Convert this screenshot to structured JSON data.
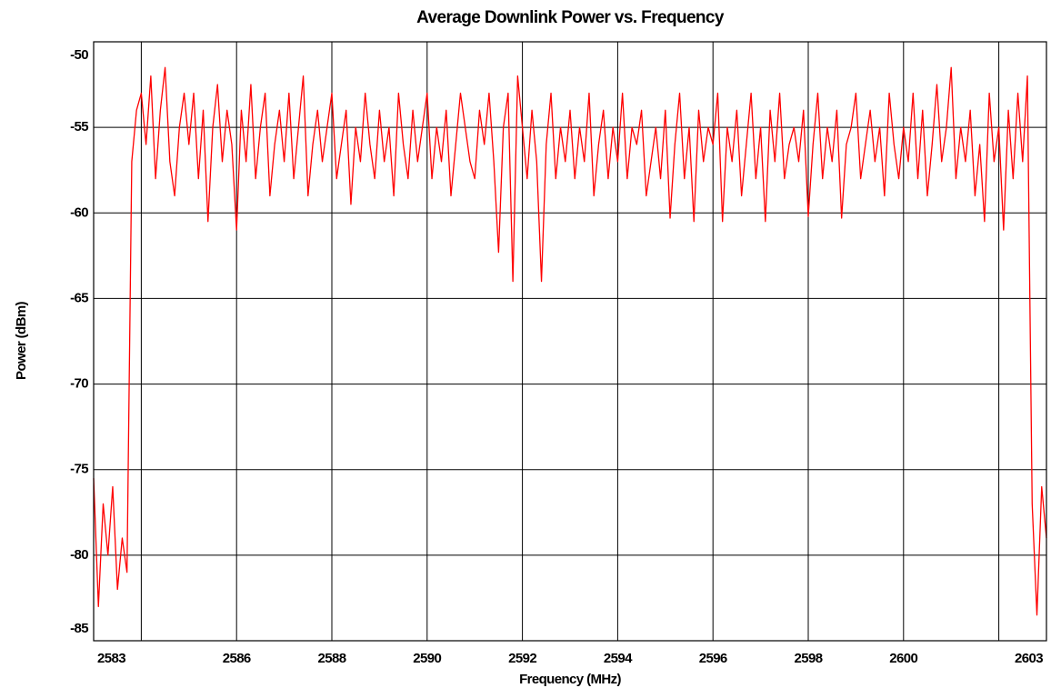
{
  "chart_data": {
    "type": "line",
    "title": "Average Downlink Power vs. Frequency",
    "xlabel": "Frequency (MHz)",
    "ylabel": "Power (dBm)",
    "x": [
      2583,
      2583.1,
      2583.2,
      2583.3,
      2583.4,
      2583.5,
      2583.6,
      2583.7,
      2583.8,
      2583.9,
      2584,
      2584.1,
      2584.2,
      2584.3,
      2584.4,
      2584.5,
      2584.6,
      2584.7,
      2584.8,
      2584.9,
      2585,
      2585.1,
      2585.2,
      2585.3,
      2585.4,
      2585.5,
      2585.6,
      2585.7,
      2585.8,
      2585.9,
      2586,
      2586.1,
      2586.2,
      2586.3,
      2586.4,
      2586.5,
      2586.6,
      2586.7,
      2586.8,
      2586.9,
      2587,
      2587.1,
      2587.2,
      2587.3,
      2587.4,
      2587.5,
      2587.6,
      2587.7,
      2587.8,
      2587.9,
      2588,
      2588.1,
      2588.2,
      2588.3,
      2588.4,
      2588.5,
      2588.6,
      2588.7,
      2588.8,
      2588.9,
      2589,
      2589.1,
      2589.2,
      2589.3,
      2589.4,
      2589.5,
      2589.6,
      2589.7,
      2589.8,
      2589.9,
      2590,
      2590.1,
      2590.2,
      2590.3,
      2590.4,
      2590.5,
      2590.6,
      2590.7,
      2590.8,
      2590.9,
      2591,
      2591.1,
      2591.2,
      2591.3,
      2591.4,
      2591.5,
      2591.6,
      2591.7,
      2591.8,
      2591.9,
      2592,
      2592.1,
      2592.2,
      2592.3,
      2592.4,
      2592.5,
      2592.6,
      2592.7,
      2592.8,
      2592.9,
      2593,
      2593.1,
      2593.2,
      2593.3,
      2593.4,
      2593.5,
      2593.6,
      2593.7,
      2593.8,
      2593.9,
      2594,
      2594.1,
      2594.2,
      2594.3,
      2594.4,
      2594.5,
      2594.6,
      2594.7,
      2594.8,
      2594.9,
      2595,
      2595.1,
      2595.2,
      2595.3,
      2595.4,
      2595.5,
      2595.6,
      2595.7,
      2595.8,
      2595.9,
      2596,
      2596.1,
      2596.2,
      2596.3,
      2596.4,
      2596.5,
      2596.6,
      2596.7,
      2596.8,
      2596.9,
      2597,
      2597.1,
      2597.2,
      2597.3,
      2597.4,
      2597.5,
      2597.6,
      2597.7,
      2597.8,
      2597.9,
      2598,
      2598.1,
      2598.2,
      2598.3,
      2598.4,
      2598.5,
      2598.6,
      2598.7,
      2598.8,
      2598.9,
      2599,
      2599.1,
      2599.2,
      2599.3,
      2599.4,
      2599.5,
      2599.6,
      2599.7,
      2599.8,
      2599.9,
      2600,
      2600.1,
      2600.2,
      2600.3,
      2600.4,
      2600.5,
      2600.6,
      2600.7,
      2600.8,
      2600.9,
      2601,
      2601.1,
      2601.2,
      2601.3,
      2601.4,
      2601.5,
      2601.6,
      2601.7,
      2601.8,
      2601.9,
      2602,
      2602.1,
      2602.2,
      2602.3,
      2602.4,
      2602.5,
      2602.6,
      2602.7,
      2602.8,
      2602.9,
      2603
    ],
    "values": [
      -75.5,
      -83,
      -77,
      -80,
      -76,
      -82,
      -79,
      -81,
      -57,
      -54,
      -53,
      -56,
      -52,
      -58,
      -54,
      -51.5,
      -57,
      -59,
      -55,
      -53,
      -56,
      -53,
      -58,
      -54,
      -60.5,
      -55,
      -52.5,
      -57,
      -54,
      -56,
      -61,
      -54,
      -57,
      -52.5,
      -58,
      -55,
      -53,
      -59,
      -56,
      -54,
      -57,
      -53,
      -58,
      -55,
      -52,
      -59,
      -56,
      -54,
      -57,
      -55,
      -53,
      -58,
      -56,
      -54,
      -59.5,
      -55,
      -57,
      -53,
      -56,
      -58,
      -54,
      -57,
      -55,
      -59,
      -53,
      -56,
      -58,
      -54,
      -57,
      -55,
      -53,
      -58,
      -55,
      -57,
      -54,
      -59,
      -56,
      -53,
      -55,
      -57,
      -58,
      -54,
      -56,
      -53,
      -57,
      -62.3,
      -55,
      -53,
      -64,
      -52,
      -55,
      -58,
      -54,
      -57,
      -64,
      -56,
      -53,
      -58,
      -55,
      -57,
      -54,
      -58,
      -55,
      -57,
      -53,
      -59,
      -56,
      -54,
      -58,
      -55,
      -57,
      -53,
      -58,
      -55,
      -56,
      -54,
      -59,
      -57,
      -55,
      -58,
      -54,
      -60.3,
      -56,
      -53,
      -58,
      -55,
      -60.5,
      -54,
      -57,
      -55,
      -56,
      -53,
      -60.5,
      -55,
      -57,
      -54,
      -59,
      -56,
      -53,
      -58,
      -55,
      -60.5,
      -54,
      -57,
      -53,
      -58,
      -56,
      -55,
      -57,
      -54,
      -60.2,
      -56,
      -53,
      -58,
      -55,
      -57,
      -54,
      -60.3,
      -56,
      -55,
      -53,
      -58,
      -56,
      -54,
      -57,
      -55,
      -59,
      -53,
      -56,
      -58,
      -55,
      -57,
      -53,
      -58,
      -54,
      -59,
      -56,
      -52.5,
      -57,
      -55,
      -51.5,
      -58,
      -55,
      -57,
      -54,
      -59,
      -56,
      -60.5,
      -53,
      -57,
      -55,
      -61,
      -54,
      -58,
      -53,
      -57,
      -52,
      -77,
      -83.5,
      -76,
      -79
    ],
    "color": "#ff0000",
    "xlim": [
      2583,
      2603
    ],
    "xticks": [
      2583,
      2586,
      2588,
      2590,
      2592,
      2594,
      2596,
      2598,
      2600,
      2603
    ],
    "xgrid": [
      2584,
      2586,
      2588,
      2590,
      2592,
      2594,
      2596,
      2598,
      2600,
      2602
    ],
    "ylim": [
      -85,
      -50
    ],
    "yticks": [
      -85,
      -80,
      -75,
      -70,
      -65,
      -60,
      -55,
      -50
    ],
    "grid": true
  }
}
